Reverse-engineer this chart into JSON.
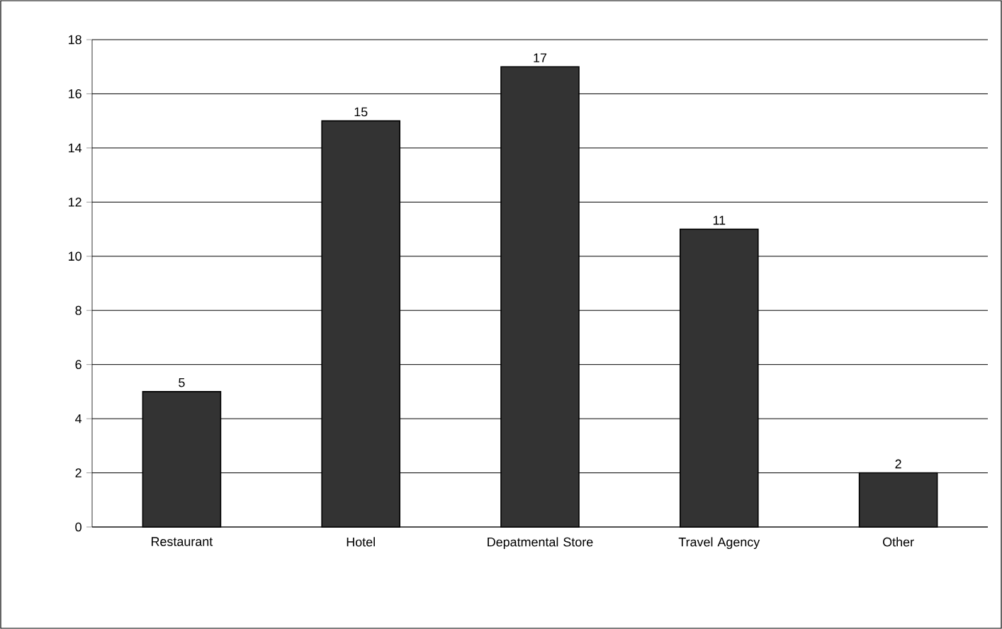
{
  "chart_data": {
    "type": "bar",
    "categories": [
      "Restaurant",
      "Hotel",
      "Depatmental Store",
      "Travel Agency",
      "Other"
    ],
    "values": [
      5,
      15,
      17,
      11,
      2
    ],
    "color": "#333333",
    "ylim": [
      0,
      18
    ],
    "yticks": [
      0,
      2,
      4,
      6,
      8,
      10,
      12,
      14,
      16,
      18
    ],
    "grid": "y",
    "data_labels": true
  }
}
